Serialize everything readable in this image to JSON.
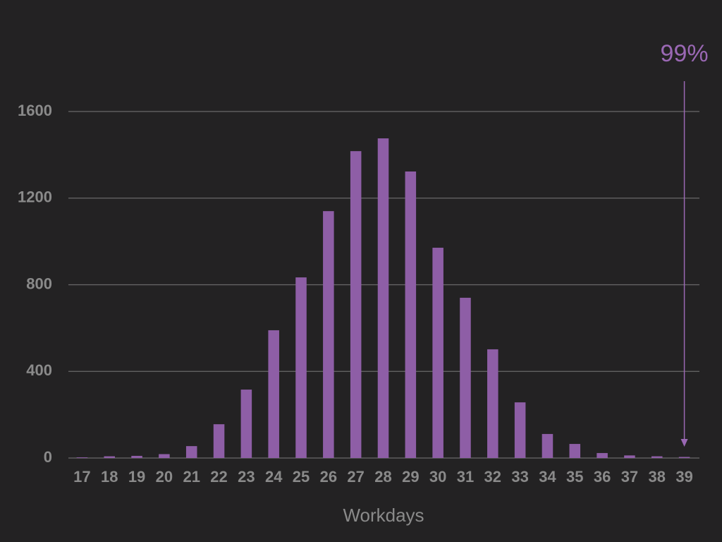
{
  "chart_data": {
    "type": "bar",
    "x": [
      17,
      18,
      19,
      20,
      21,
      22,
      23,
      24,
      25,
      26,
      27,
      28,
      29,
      30,
      31,
      32,
      33,
      34,
      35,
      36,
      37,
      38,
      39
    ],
    "values": [
      3,
      8,
      10,
      18,
      55,
      156,
      316,
      590,
      834,
      1140,
      1417,
      1476,
      1323,
      971,
      740,
      502,
      257,
      111,
      65,
      23,
      12,
      8,
      5
    ],
    "color": "#8e5ea6",
    "xlabel": "Workdays",
    "xlim": [
      16.5,
      39.5
    ],
    "ylim": [
      0,
      1600
    ],
    "yticks": [
      0,
      400,
      800,
      1200,
      1600
    ],
    "grid": true,
    "annotation": {
      "text": "99%",
      "x": 39,
      "color": "#9a68b4"
    }
  }
}
